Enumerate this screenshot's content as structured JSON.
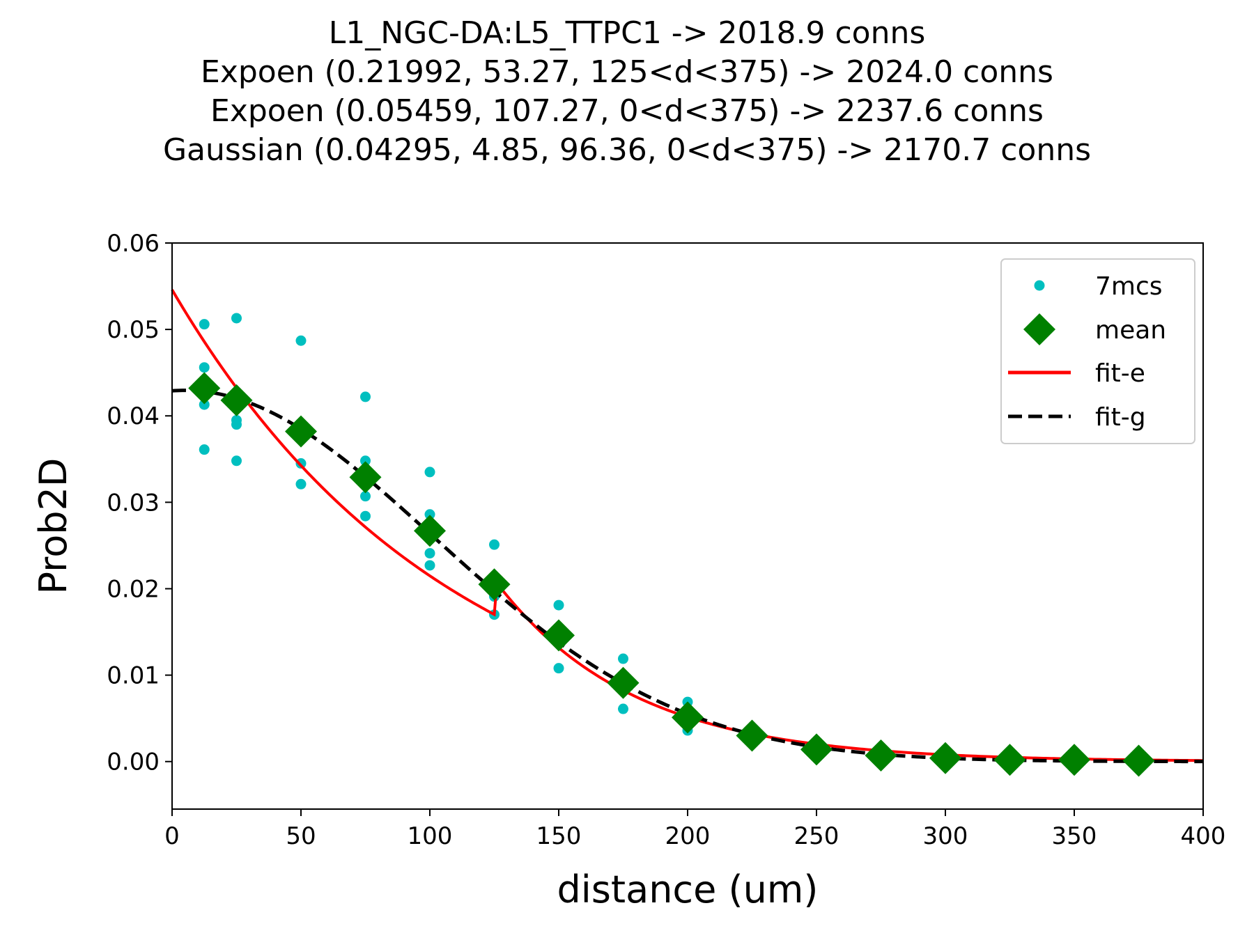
{
  "chart_data": {
    "type": "scatter",
    "title_lines": [
      "L1_NGC-DA:L5_TTPC1 -> 2018.9 conns",
      "Expoen (0.21992, 53.27, 125<d<375) -> 2024.0 conns",
      "Expoen (0.05459, 107.27, 0<d<375) -> 2237.6 conns",
      "Gaussian (0.04295, 4.85, 96.36, 0<d<375) -> 2170.7 conns"
    ],
    "xlabel": "distance (um)",
    "ylabel": "Prob2D",
    "xlim": [
      0,
      400
    ],
    "ylim": [
      -0.0055,
      0.06
    ],
    "xticks": [
      0,
      50,
      100,
      150,
      200,
      250,
      300,
      350,
      400
    ],
    "xtick_labels": [
      "0",
      "50",
      "100",
      "150",
      "200",
      "250",
      "300",
      "350",
      "400"
    ],
    "yticks": [
      0.0,
      0.01,
      0.02,
      0.03,
      0.04,
      0.05,
      0.06
    ],
    "ytick_labels": [
      "0.00",
      "0.01",
      "0.02",
      "0.03",
      "0.04",
      "0.05",
      "0.06"
    ],
    "grid": false,
    "legend_position": "top-right",
    "legend": [
      "7mcs",
      "mean",
      "fit-e",
      "fit-g"
    ],
    "series": [
      {
        "name": "7mcs",
        "kind": "points",
        "color": "#00bfbf",
        "points": [
          [
            12.5,
            0.0506
          ],
          [
            12.5,
            0.0456
          ],
          [
            12.5,
            0.0413
          ],
          [
            12.5,
            0.0361
          ],
          [
            25,
            0.0513
          ],
          [
            25,
            0.0395
          ],
          [
            25,
            0.039
          ],
          [
            25,
            0.0348
          ],
          [
            50,
            0.0487
          ],
          [
            50,
            0.0345
          ],
          [
            50,
            0.0321
          ],
          [
            75,
            0.0422
          ],
          [
            75,
            0.0348
          ],
          [
            75,
            0.0307
          ],
          [
            75,
            0.0284
          ],
          [
            100,
            0.0335
          ],
          [
            100,
            0.0286
          ],
          [
            100,
            0.0241
          ],
          [
            100,
            0.0227
          ],
          [
            125,
            0.0251
          ],
          [
            125,
            0.0191
          ],
          [
            125,
            0.017
          ],
          [
            150,
            0.0181
          ],
          [
            150,
            0.0108
          ],
          [
            175,
            0.0119
          ],
          [
            175,
            0.0098
          ],
          [
            175,
            0.0061
          ],
          [
            200,
            0.0069
          ],
          [
            200,
            0.0036
          ]
        ]
      },
      {
        "name": "mean",
        "kind": "markers",
        "color": "#008000",
        "points": [
          [
            12.5,
            0.0432
          ],
          [
            25,
            0.0418
          ],
          [
            50,
            0.0382
          ],
          [
            75,
            0.0329
          ],
          [
            100,
            0.0267
          ],
          [
            125,
            0.0205
          ],
          [
            150,
            0.0146
          ],
          [
            175,
            0.0091
          ],
          [
            200,
            0.0051
          ],
          [
            225,
            0.003
          ],
          [
            250,
            0.0014
          ],
          [
            275,
            0.0007
          ],
          [
            300,
            0.0004
          ],
          [
            325,
            0.0002
          ],
          [
            350,
            0.0002
          ],
          [
            375,
            0.0001
          ]
        ]
      },
      {
        "name": "fit-e",
        "kind": "line",
        "color": "#ff0000",
        "note_params": [
          [
            0.05459,
            107.27,
            0,
            125
          ],
          [
            0.21992,
            53.27,
            125,
            400
          ]
        ]
      },
      {
        "name": "fit-g",
        "kind": "dashed",
        "color": "#000000",
        "note_params": [
          0.04295,
          4.85,
          96.36
        ]
      }
    ]
  }
}
